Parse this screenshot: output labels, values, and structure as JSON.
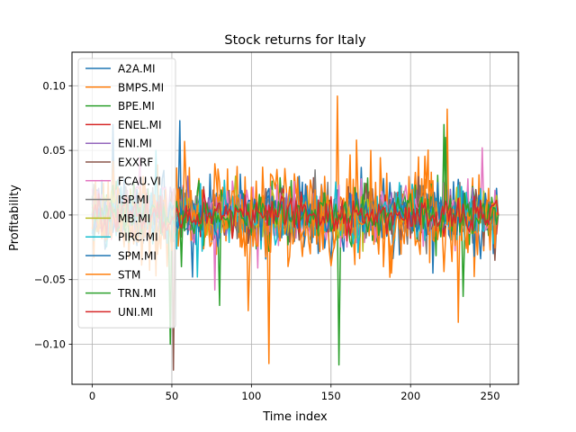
{
  "chart_data": {
    "type": "line",
    "title": "Stock returns for Italy",
    "xlabel": "Time index",
    "ylabel": "Profitability",
    "xlim": [
      -12.75,
      267.75
    ],
    "ylim": [
      -0.131,
      0.126
    ],
    "xticks": [
      0,
      50,
      100,
      150,
      200,
      250
    ],
    "xtick_labels": [
      "0",
      "50",
      "100",
      "150",
      "200",
      "250"
    ],
    "yticks": [
      -0.1,
      -0.05,
      0.0,
      0.05,
      0.1
    ],
    "ytick_labels": [
      "−0.10",
      "−0.05",
      "0.00",
      "0.05",
      "0.10"
    ],
    "grid": true,
    "legend_position": "top-left",
    "n_points": 256,
    "series": [
      {
        "name": "A2A.MI",
        "color": "#1f77b4",
        "amplitude": 0.022,
        "spikes": [
          [
            13,
            0.07
          ],
          [
            55,
            0.073
          ],
          [
            63,
            -0.048
          ],
          [
            150,
            -0.035
          ],
          [
            214,
            -0.045
          ]
        ]
      },
      {
        "name": "BMPS.MI",
        "color": "#ff7f0e",
        "amplitude": 0.03,
        "spikes": [
          [
            98,
            -0.074
          ],
          [
            111,
            -0.115
          ],
          [
            154,
            0.092
          ],
          [
            223,
            0.082
          ],
          [
            230,
            -0.083
          ],
          [
            166,
            0.058
          ]
        ]
      },
      {
        "name": "BPE.MI",
        "color": "#2ca02c",
        "amplitude": 0.018,
        "spikes": [
          [
            49,
            -0.1
          ],
          [
            155,
            -0.116
          ],
          [
            221,
            0.07
          ],
          [
            233,
            -0.063
          ],
          [
            80,
            -0.07
          ]
        ]
      },
      {
        "name": "ENEL.MI",
        "color": "#d62728",
        "amplitude": 0.01,
        "spikes": [
          [
            120,
            0.02
          ],
          [
            200,
            -0.018
          ]
        ]
      },
      {
        "name": "ENI.MI",
        "color": "#9467bd",
        "amplitude": 0.012,
        "spikes": [
          [
            60,
            0.03
          ],
          [
            180,
            -0.025
          ]
        ]
      },
      {
        "name": "EXXRF",
        "color": "#8c564b",
        "amplitude": 0.016,
        "spikes": [
          [
            51,
            -0.12
          ],
          [
            253,
            -0.035
          ]
        ]
      },
      {
        "name": "FCAU.VI",
        "color": "#e377c2",
        "amplitude": 0.018,
        "spikes": [
          [
            77,
            -0.058
          ],
          [
            104,
            -0.041
          ],
          [
            245,
            0.052
          ],
          [
            30,
            0.045
          ]
        ]
      },
      {
        "name": "ISP.MI",
        "color": "#7f7f7f",
        "amplitude": 0.015,
        "spikes": [
          [
            140,
            0.035
          ],
          [
            210,
            -0.03
          ]
        ]
      },
      {
        "name": "MB.MI",
        "color": "#bcbd22",
        "amplitude": 0.013,
        "spikes": [
          [
            90,
            0.03
          ],
          [
            170,
            -0.028
          ]
        ]
      },
      {
        "name": "PIRC.MI",
        "color": "#17becf",
        "amplitude": 0.018,
        "spikes": [
          [
            66,
            -0.048
          ],
          [
            40,
            0.05
          ]
        ]
      },
      {
        "name": "SPM.MI",
        "color": "#1f77b4",
        "amplitude": 0.014,
        "spikes": [
          [
            130,
            0.03
          ],
          [
            240,
            -0.032
          ]
        ]
      },
      {
        "name": "STM",
        "color": "#ff7f0e",
        "amplitude": 0.022,
        "spikes": [
          [
            58,
            0.057
          ],
          [
            175,
            0.05
          ],
          [
            188,
            -0.045
          ]
        ]
      },
      {
        "name": "TRN.MI",
        "color": "#2ca02c",
        "amplitude": 0.01,
        "spikes": [
          [
            56,
            -0.04
          ],
          [
            222,
            0.06
          ]
        ]
      },
      {
        "name": "UNI.MI",
        "color": "#d62728",
        "amplitude": 0.01,
        "spikes": [
          [
            70,
            0.02
          ],
          [
            160,
            -0.02
          ]
        ]
      }
    ]
  }
}
